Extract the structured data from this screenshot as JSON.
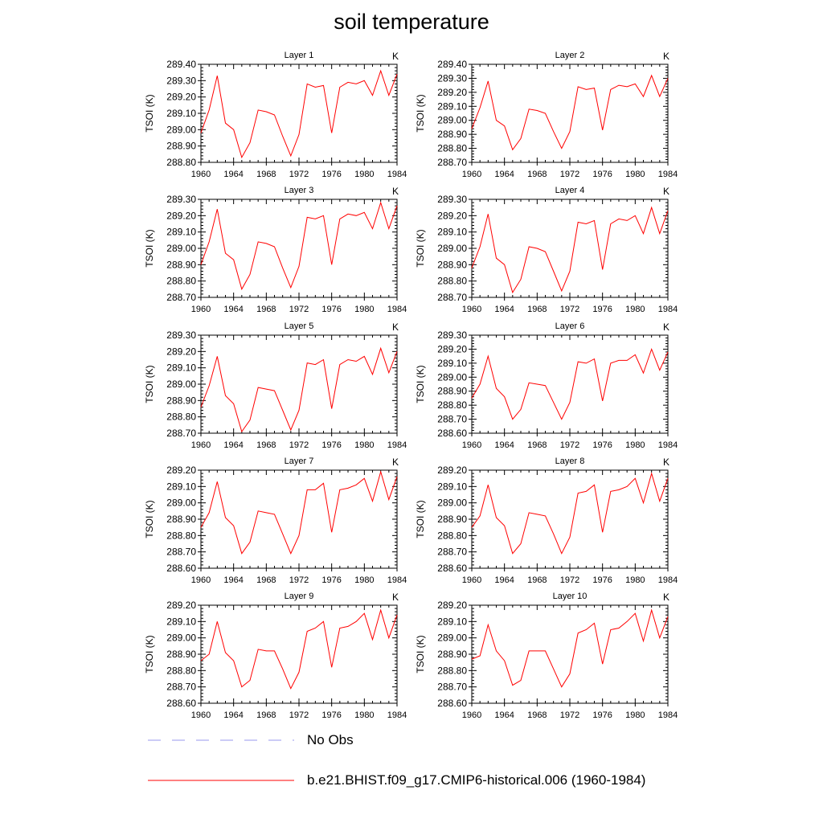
{
  "title": "soil temperature",
  "units_label": "K",
  "legend": [
    {
      "label": "No Obs",
      "color": "#9999ee",
      "style": "dashed"
    },
    {
      "label": "b.e21.BHIST.f09_g17.CMIP6-historical.006 (1960-1984)",
      "color": "#ff0000",
      "style": "solid"
    }
  ],
  "chart_data": [
    {
      "type": "line",
      "title": "Layer 1",
      "ylabel": "TSOI  (K)",
      "x": [
        1960,
        1961,
        1962,
        1963,
        1964,
        1965,
        1966,
        1967,
        1968,
        1969,
        1970,
        1971,
        1972,
        1973,
        1974,
        1975,
        1976,
        1977,
        1978,
        1979,
        1980,
        1981,
        1982,
        1983,
        1984
      ],
      "xticks": [
        1960,
        1964,
        1968,
        1972,
        1976,
        1980,
        1984
      ],
      "ylim": [
        288.8,
        289.4
      ],
      "yticks": [
        288.8,
        288.9,
        289.0,
        289.1,
        289.2,
        289.3,
        289.4
      ],
      "series": [
        {
          "color": "#ff0000",
          "values": [
            288.98,
            289.12,
            289.33,
            289.04,
            289.0,
            288.83,
            288.92,
            289.12,
            289.11,
            289.09,
            288.96,
            288.84,
            288.97,
            289.28,
            289.26,
            289.27,
            288.98,
            289.26,
            289.29,
            289.28,
            289.3,
            289.21,
            289.36,
            289.21,
            289.34
          ]
        }
      ]
    },
    {
      "type": "line",
      "title": "Layer 2",
      "ylabel": "TSOI  (K)",
      "x": [
        1960,
        1961,
        1962,
        1963,
        1964,
        1965,
        1966,
        1967,
        1968,
        1969,
        1970,
        1971,
        1972,
        1973,
        1974,
        1975,
        1976,
        1977,
        1978,
        1979,
        1980,
        1981,
        1982,
        1983,
        1984
      ],
      "xticks": [
        1960,
        1964,
        1968,
        1972,
        1976,
        1980,
        1984
      ],
      "ylim": [
        288.7,
        289.4
      ],
      "yticks": [
        288.7,
        288.8,
        288.9,
        289.0,
        289.1,
        289.2,
        289.3,
        289.4
      ],
      "series": [
        {
          "color": "#ff0000",
          "values": [
            288.94,
            289.09,
            289.28,
            289.0,
            288.96,
            288.79,
            288.87,
            289.08,
            289.07,
            289.05,
            288.92,
            288.8,
            288.92,
            289.24,
            289.22,
            289.23,
            288.93,
            289.22,
            289.25,
            289.24,
            289.26,
            289.17,
            289.32,
            289.17,
            289.3
          ]
        }
      ]
    },
    {
      "type": "line",
      "title": "Layer 3",
      "ylabel": "TSOI  (K)",
      "x": [
        1960,
        1961,
        1962,
        1963,
        1964,
        1965,
        1966,
        1967,
        1968,
        1969,
        1970,
        1971,
        1972,
        1973,
        1974,
        1975,
        1976,
        1977,
        1978,
        1979,
        1980,
        1981,
        1982,
        1983,
        1984
      ],
      "xticks": [
        1960,
        1964,
        1968,
        1972,
        1976,
        1980,
        1984
      ],
      "ylim": [
        288.7,
        289.3
      ],
      "yticks": [
        288.7,
        288.8,
        288.9,
        289.0,
        289.1,
        289.2,
        289.3
      ],
      "series": [
        {
          "color": "#ff0000",
          "values": [
            288.9,
            289.04,
            289.24,
            288.97,
            288.93,
            288.75,
            288.84,
            289.04,
            289.03,
            289.01,
            288.88,
            288.76,
            288.89,
            289.19,
            289.18,
            289.2,
            288.9,
            289.18,
            289.21,
            289.2,
            289.22,
            289.12,
            289.28,
            289.12,
            289.26
          ]
        }
      ]
    },
    {
      "type": "line",
      "title": "Layer 4",
      "ylabel": "TSOI  (K)",
      "x": [
        1960,
        1961,
        1962,
        1963,
        1964,
        1965,
        1966,
        1967,
        1968,
        1969,
        1970,
        1971,
        1972,
        1973,
        1974,
        1975,
        1976,
        1977,
        1978,
        1979,
        1980,
        1981,
        1982,
        1983,
        1984
      ],
      "xticks": [
        1960,
        1964,
        1968,
        1972,
        1976,
        1980,
        1984
      ],
      "ylim": [
        288.7,
        289.3
      ],
      "yticks": [
        288.7,
        288.8,
        288.9,
        289.0,
        289.1,
        289.2,
        289.3
      ],
      "series": [
        {
          "color": "#ff0000",
          "values": [
            288.88,
            289.01,
            289.21,
            288.94,
            288.9,
            288.73,
            288.81,
            289.01,
            289.0,
            288.98,
            288.86,
            288.74,
            288.86,
            289.16,
            289.15,
            289.17,
            288.87,
            289.15,
            289.18,
            289.17,
            289.2,
            289.09,
            289.25,
            289.09,
            289.23
          ]
        }
      ]
    },
    {
      "type": "line",
      "title": "Layer 5",
      "ylabel": "TSOI  (K)",
      "x": [
        1960,
        1961,
        1962,
        1963,
        1964,
        1965,
        1966,
        1967,
        1968,
        1969,
        1970,
        1971,
        1972,
        1973,
        1974,
        1975,
        1976,
        1977,
        1978,
        1979,
        1980,
        1981,
        1982,
        1983,
        1984
      ],
      "xticks": [
        1960,
        1964,
        1968,
        1972,
        1976,
        1980,
        1984
      ],
      "ylim": [
        288.7,
        289.3
      ],
      "yticks": [
        288.7,
        288.8,
        288.9,
        289.0,
        289.1,
        289.2,
        289.3
      ],
      "series": [
        {
          "color": "#ff0000",
          "values": [
            288.86,
            288.99,
            289.17,
            288.93,
            288.88,
            288.71,
            288.78,
            288.98,
            288.97,
            288.96,
            288.84,
            288.72,
            288.84,
            289.13,
            289.12,
            289.15,
            288.85,
            289.12,
            289.15,
            289.14,
            289.17,
            289.06,
            289.22,
            289.07,
            289.2
          ]
        }
      ]
    },
    {
      "type": "line",
      "title": "Layer 6",
      "ylabel": "TSOI  (K)",
      "x": [
        1960,
        1961,
        1962,
        1963,
        1964,
        1965,
        1966,
        1967,
        1968,
        1969,
        1970,
        1971,
        1972,
        1973,
        1974,
        1975,
        1976,
        1977,
        1978,
        1979,
        1980,
        1981,
        1982,
        1983,
        1984
      ],
      "xticks": [
        1960,
        1964,
        1968,
        1972,
        1976,
        1980,
        1984
      ],
      "ylim": [
        288.6,
        289.3
      ],
      "yticks": [
        288.6,
        288.7,
        288.8,
        288.9,
        289.0,
        289.1,
        289.2,
        289.3
      ],
      "series": [
        {
          "color": "#ff0000",
          "values": [
            288.85,
            288.95,
            289.15,
            288.92,
            288.86,
            288.7,
            288.77,
            288.96,
            288.95,
            288.94,
            288.82,
            288.7,
            288.82,
            289.11,
            289.1,
            289.13,
            288.83,
            289.1,
            289.12,
            289.12,
            289.16,
            289.03,
            289.2,
            289.05,
            289.18
          ]
        }
      ]
    },
    {
      "type": "line",
      "title": "Layer 7",
      "ylabel": "TSOI  (K)",
      "x": [
        1960,
        1961,
        1962,
        1963,
        1964,
        1965,
        1966,
        1967,
        1968,
        1969,
        1970,
        1971,
        1972,
        1973,
        1974,
        1975,
        1976,
        1977,
        1978,
        1979,
        1980,
        1981,
        1982,
        1983,
        1984
      ],
      "xticks": [
        1960,
        1964,
        1968,
        1972,
        1976,
        1980,
        1984
      ],
      "ylim": [
        288.6,
        289.2
      ],
      "yticks": [
        288.6,
        288.7,
        288.8,
        288.9,
        289.0,
        289.1,
        289.2
      ],
      "series": [
        {
          "color": "#ff0000",
          "values": [
            288.85,
            288.94,
            289.13,
            288.91,
            288.86,
            288.69,
            288.76,
            288.95,
            288.94,
            288.93,
            288.81,
            288.69,
            288.8,
            289.08,
            289.08,
            289.12,
            288.82,
            289.08,
            289.09,
            289.11,
            289.15,
            289.01,
            289.19,
            289.02,
            289.16
          ]
        }
      ]
    },
    {
      "type": "line",
      "title": "Layer 8",
      "ylabel": "TSOI  (K)",
      "x": [
        1960,
        1961,
        1962,
        1963,
        1964,
        1965,
        1966,
        1967,
        1968,
        1969,
        1970,
        1971,
        1972,
        1973,
        1974,
        1975,
        1976,
        1977,
        1978,
        1979,
        1980,
        1981,
        1982,
        1983,
        1984
      ],
      "xticks": [
        1960,
        1964,
        1968,
        1972,
        1976,
        1980,
        1984
      ],
      "ylim": [
        288.6,
        289.2
      ],
      "yticks": [
        288.6,
        288.7,
        288.8,
        288.9,
        289.0,
        289.1,
        289.2
      ],
      "series": [
        {
          "color": "#ff0000",
          "values": [
            288.85,
            288.92,
            289.11,
            288.91,
            288.86,
            288.69,
            288.75,
            288.94,
            288.93,
            288.92,
            288.81,
            288.69,
            288.79,
            289.06,
            289.07,
            289.11,
            288.82,
            289.07,
            289.08,
            289.1,
            289.15,
            289.0,
            289.18,
            289.01,
            289.15
          ]
        }
      ]
    },
    {
      "type": "line",
      "title": "Layer 9",
      "ylabel": "TSOI  (K)",
      "x": [
        1960,
        1961,
        1962,
        1963,
        1964,
        1965,
        1966,
        1967,
        1968,
        1969,
        1970,
        1971,
        1972,
        1973,
        1974,
        1975,
        1976,
        1977,
        1978,
        1979,
        1980,
        1981,
        1982,
        1983,
        1984
      ],
      "xticks": [
        1960,
        1964,
        1968,
        1972,
        1976,
        1980,
        1984
      ],
      "ylim": [
        288.6,
        289.2
      ],
      "yticks": [
        288.6,
        288.7,
        288.8,
        288.9,
        289.0,
        289.1,
        289.2
      ],
      "series": [
        {
          "color": "#ff0000",
          "values": [
            288.86,
            288.9,
            289.1,
            288.91,
            288.86,
            288.7,
            288.74,
            288.93,
            288.92,
            288.92,
            288.81,
            288.69,
            288.79,
            289.04,
            289.06,
            289.1,
            288.82,
            289.06,
            289.07,
            289.1,
            289.15,
            288.99,
            289.17,
            289.0,
            289.14
          ]
        }
      ]
    },
    {
      "type": "line",
      "title": "Layer 10",
      "ylabel": "TSOI  (K)",
      "x": [
        1960,
        1961,
        1962,
        1963,
        1964,
        1965,
        1966,
        1967,
        1968,
        1969,
        1970,
        1971,
        1972,
        1973,
        1974,
        1975,
        1976,
        1977,
        1978,
        1979,
        1980,
        1981,
        1982,
        1983,
        1984
      ],
      "xticks": [
        1960,
        1964,
        1968,
        1972,
        1976,
        1980,
        1984
      ],
      "ylim": [
        288.6,
        289.2
      ],
      "yticks": [
        288.6,
        288.7,
        288.8,
        288.9,
        289.0,
        289.1,
        289.2
      ],
      "series": [
        {
          "color": "#ff0000",
          "values": [
            288.87,
            288.89,
            289.08,
            288.92,
            288.86,
            288.71,
            288.74,
            288.92,
            288.92,
            288.92,
            288.81,
            288.7,
            288.78,
            289.03,
            289.05,
            289.09,
            288.84,
            289.05,
            289.06,
            289.1,
            289.15,
            288.98,
            289.17,
            289.0,
            289.13
          ]
        }
      ]
    }
  ]
}
